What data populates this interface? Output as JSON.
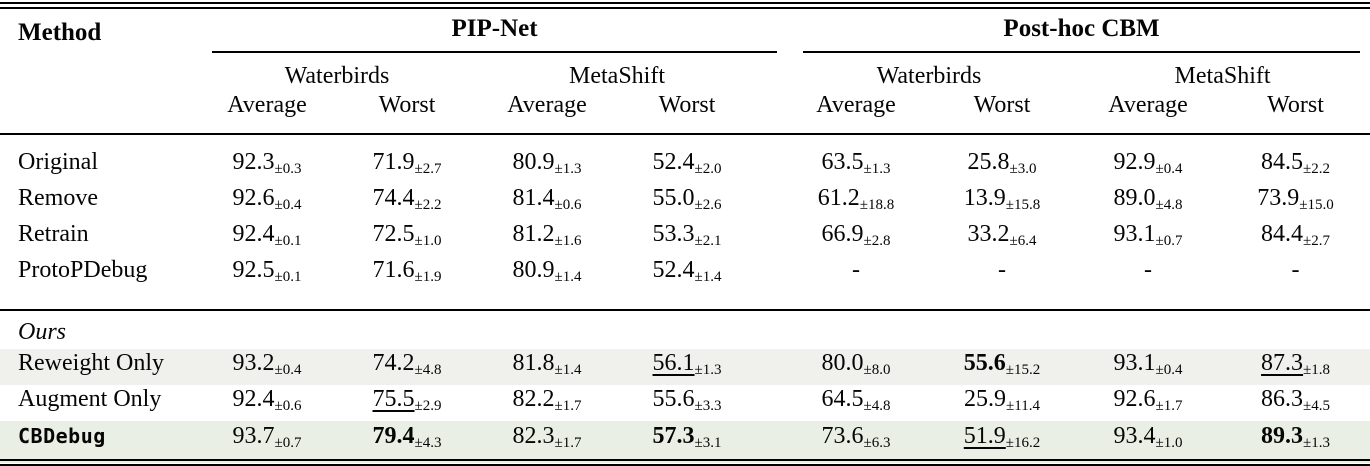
{
  "colors": {
    "highlight_gray": "#f0f0ed",
    "highlight_green": "#e9efe4",
    "rule": "#000000",
    "background": "#ffffff"
  },
  "table": {
    "method_header": "Method",
    "groups": [
      {
        "label": "PIP-Net"
      },
      {
        "label": "Post-hoc CBM"
      }
    ],
    "dataset_labels": [
      "Waterbirds",
      "MetaShift",
      "Waterbirds",
      "MetaShift"
    ],
    "metric_labels": [
      "Average",
      "Worst",
      "Average",
      "Worst",
      "Average",
      "Worst",
      "Average",
      "Worst"
    ],
    "sections": [
      {
        "rows": [
          {
            "method": "Original",
            "cells": [
              {
                "v": "92.3",
                "e": "±0.3"
              },
              {
                "v": "71.9",
                "e": "±2.7"
              },
              {
                "v": "80.9",
                "e": "±1.3"
              },
              {
                "v": "52.4",
                "e": "±2.0"
              },
              {
                "v": "63.5",
                "e": "±1.3"
              },
              {
                "v": "25.8",
                "e": "±3.0"
              },
              {
                "v": "92.9",
                "e": "±0.4"
              },
              {
                "v": "84.5",
                "e": "±2.2"
              }
            ]
          },
          {
            "method": "Remove",
            "cells": [
              {
                "v": "92.6",
                "e": "±0.4"
              },
              {
                "v": "74.4",
                "e": "±2.2"
              },
              {
                "v": "81.4",
                "e": "±0.6"
              },
              {
                "v": "55.0",
                "e": "±2.6"
              },
              {
                "v": "61.2",
                "e": "±18.8"
              },
              {
                "v": "13.9",
                "e": "±15.8"
              },
              {
                "v": "89.0",
                "e": "±4.8"
              },
              {
                "v": "73.9",
                "e": "±15.0"
              }
            ]
          },
          {
            "method": "Retrain",
            "cells": [
              {
                "v": "92.4",
                "e": "±0.1"
              },
              {
                "v": "72.5",
                "e": "±1.0"
              },
              {
                "v": "81.2",
                "e": "±1.6"
              },
              {
                "v": "53.3",
                "e": "±2.1"
              },
              {
                "v": "66.9",
                "e": "±2.8"
              },
              {
                "v": "33.2",
                "e": "±6.4"
              },
              {
                "v": "93.1",
                "e": "±0.7"
              },
              {
                "v": "84.4",
                "e": "±2.7"
              }
            ]
          },
          {
            "method": "ProtoPDebug",
            "cells": [
              {
                "v": "92.5",
                "e": "±0.1"
              },
              {
                "v": "71.6",
                "e": "±1.9"
              },
              {
                "v": "80.9",
                "e": "±1.4"
              },
              {
                "v": "52.4",
                "e": "±1.4"
              },
              {
                "v": "-",
                "e": ""
              },
              {
                "v": "-",
                "e": ""
              },
              {
                "v": "-",
                "e": ""
              },
              {
                "v": "-",
                "e": ""
              }
            ]
          }
        ]
      },
      {
        "label": "Ours",
        "rows": [
          {
            "method": "Reweight Only",
            "bg": "highlight_gray",
            "cells": [
              {
                "v": "93.2",
                "e": "±0.4"
              },
              {
                "v": "74.2",
                "e": "±4.8"
              },
              {
                "v": "81.8",
                "e": "±1.4"
              },
              {
                "v": "56.1",
                "e": "±1.3",
                "style": "underline"
              },
              {
                "v": "80.0",
                "e": "±8.0"
              },
              {
                "v": "55.6",
                "e": "±15.2",
                "style": "bold"
              },
              {
                "v": "93.1",
                "e": "±0.4"
              },
              {
                "v": "87.3",
                "e": "±1.8",
                "style": "underline"
              }
            ]
          },
          {
            "method": "Augment Only",
            "cells": [
              {
                "v": "92.4",
                "e": "±0.6"
              },
              {
                "v": "75.5",
                "e": "±2.9",
                "style": "underline"
              },
              {
                "v": "82.2",
                "e": "±1.7"
              },
              {
                "v": "55.6",
                "e": "±3.3"
              },
              {
                "v": "64.5",
                "e": "±4.8"
              },
              {
                "v": "25.9",
                "e": "±11.4"
              },
              {
                "v": "92.6",
                "e": "±1.7"
              },
              {
                "v": "86.3",
                "e": "±4.5"
              }
            ]
          },
          {
            "method": "CBDebug",
            "mono": true,
            "bg": "highlight_green",
            "cells": [
              {
                "v": "93.7",
                "e": "±0.7"
              },
              {
                "v": "79.4",
                "e": "±4.3",
                "style": "bold"
              },
              {
                "v": "82.3",
                "e": "±1.7"
              },
              {
                "v": "57.3",
                "e": "±3.1",
                "style": "bold"
              },
              {
                "v": "73.6",
                "e": "±6.3"
              },
              {
                "v": "51.9",
                "e": "±16.2",
                "style": "underline"
              },
              {
                "v": "93.4",
                "e": "±1.0"
              },
              {
                "v": "89.3",
                "e": "±1.3",
                "style": "bold"
              }
            ]
          }
        ]
      }
    ]
  }
}
